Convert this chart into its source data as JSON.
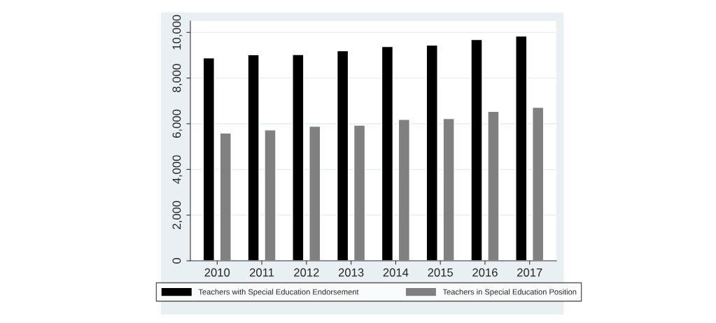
{
  "chart_data": {
    "type": "bar",
    "categories": [
      "2010",
      "2011",
      "2012",
      "2013",
      "2014",
      "2015",
      "2016",
      "2017"
    ],
    "series": [
      {
        "name": "Teachers with Special Education Endorsement",
        "color": "#000000",
        "values": [
          8880,
          9020,
          9030,
          9200,
          9380,
          9440,
          9690,
          9840
        ]
      },
      {
        "name": "Teachers in Special Education Position",
        "color": "#808080",
        "values": [
          5590,
          5730,
          5890,
          5940,
          6190,
          6230,
          6540,
          6720
        ]
      }
    ],
    "ylim": [
      0,
      10500
    ],
    "yticks": [
      0,
      {
        "value": 2000,
        "label": "2,000"
      },
      {
        "value": 4000,
        "label": "4,000"
      },
      {
        "value": 6000,
        "label": "6,000"
      },
      {
        "value": 8000,
        "label": "8,000"
      },
      {
        "value": 10000,
        "label": "10,000"
      }
    ],
    "grid": "y",
    "legend": "bottom"
  }
}
